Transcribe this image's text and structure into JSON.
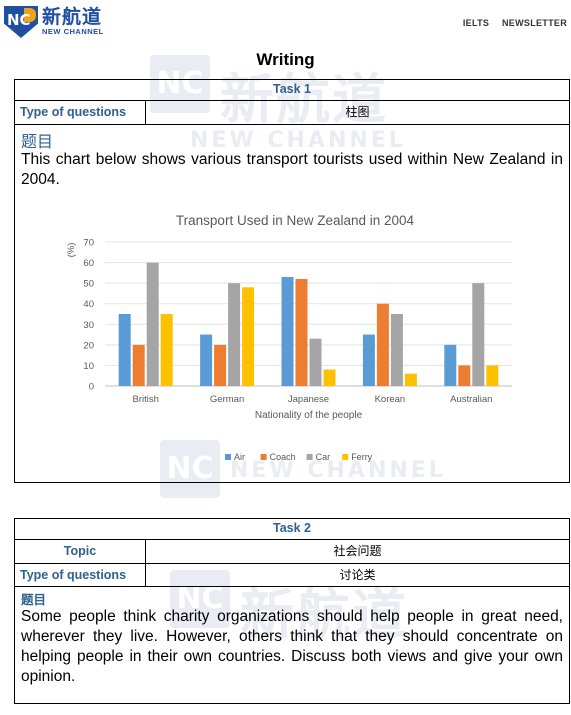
{
  "header": {
    "brand_cn": "新航道",
    "brand_en": "NEW CHANNEL",
    "links": [
      "IELTS",
      "NEWSLETTER"
    ],
    "watermark_cn": "新航道",
    "watermark_en": "NEW CHANNEL"
  },
  "page_title": "Writing",
  "task1": {
    "heading": "Task 1",
    "type_label": "Type of questions",
    "type_value": "柱图",
    "topic_heading": "题目",
    "prompt": "This chart below shows various transport tourists used within New Zealand in 2004."
  },
  "chart_data": {
    "type": "bar",
    "title": "Transport Used in New Zealand in 2004",
    "xlabel": "Nationality of the people",
    "ylabel": "(%)",
    "ylim": [
      0,
      70
    ],
    "yticks": [
      0,
      10,
      20,
      30,
      40,
      50,
      60,
      70
    ],
    "grid": true,
    "legend": "bottom",
    "categories": [
      "British",
      "German",
      "Japanese",
      "Korean",
      "Australian"
    ],
    "series": [
      {
        "name": "Air",
        "color": "#5b9bd5",
        "values": [
          35,
          25,
          53,
          25,
          20
        ]
      },
      {
        "name": "Coach",
        "color": "#ed7d31",
        "values": [
          20,
          20,
          52,
          40,
          10
        ]
      },
      {
        "name": "Car",
        "color": "#a5a5a5",
        "values": [
          60,
          50,
          23,
          35,
          50
        ]
      },
      {
        "name": "Ferry",
        "color": "#ffc000",
        "values": [
          35,
          48,
          8,
          6,
          10
        ]
      }
    ]
  },
  "task2": {
    "heading": "Task 2",
    "topic_label": "Topic",
    "topic_value": "社会问题",
    "type_label": "Type of questions",
    "type_value": "讨论类",
    "topic_heading": "题目",
    "prompt": "Some people think charity organizations should help people in great need, wherever they live. However, others think that they should concentrate on helping people in their own countries. Discuss both views and give your own opinion."
  },
  "colors": {
    "brand_blue": "#1e4fa0",
    "brand_orange": "#f2a11a",
    "label_blue": "#2f6190"
  }
}
